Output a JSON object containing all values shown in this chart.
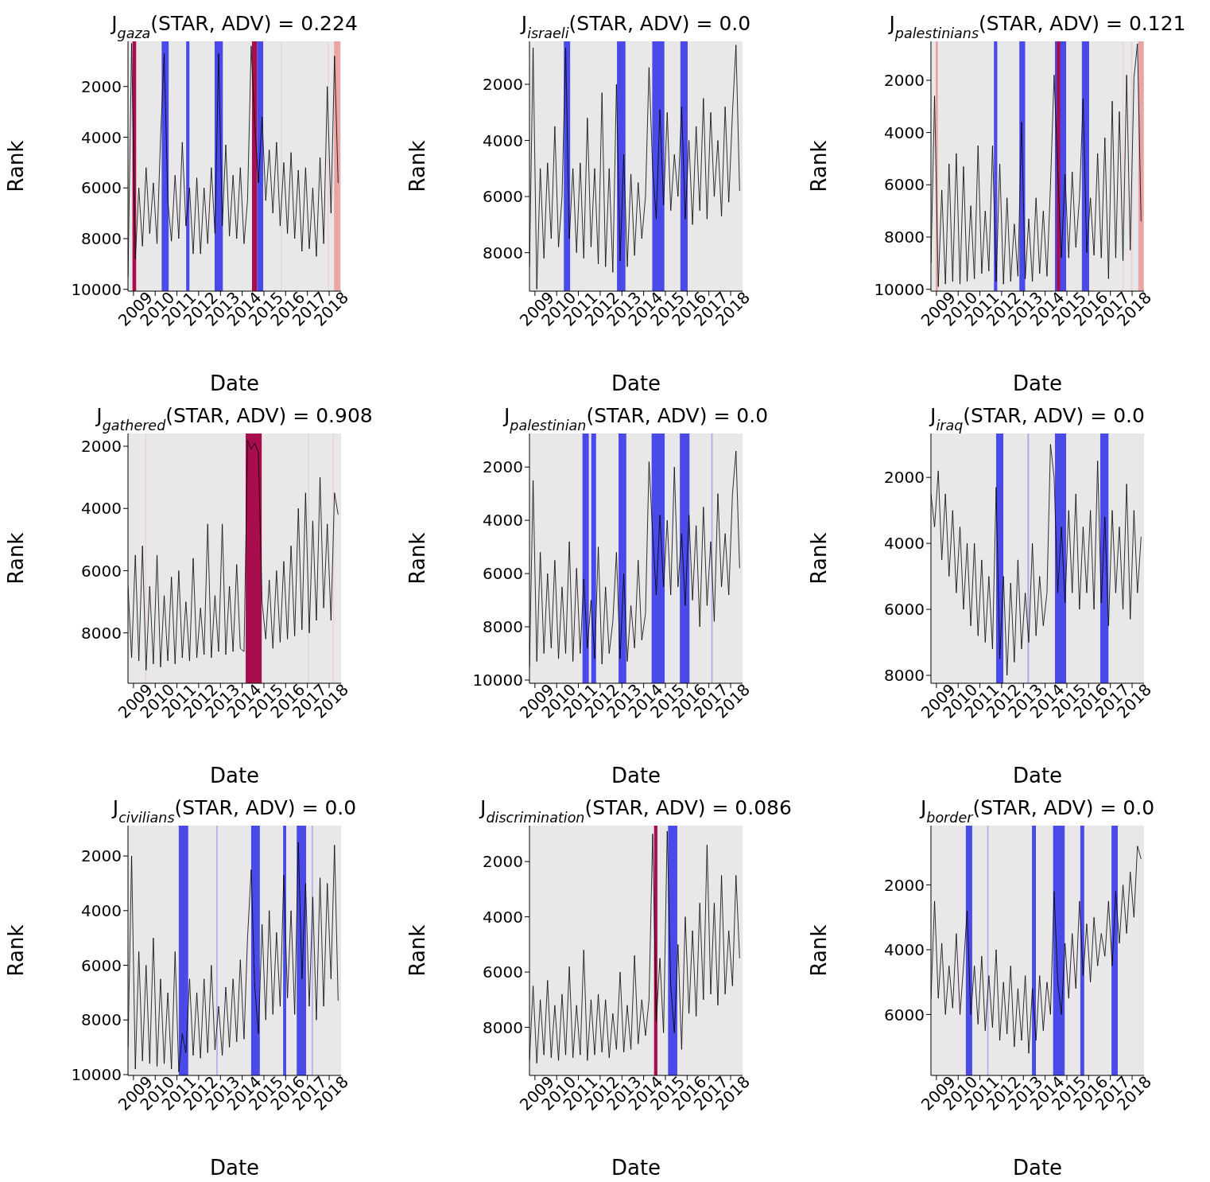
{
  "chart_data": [
    {
      "type": "line",
      "title": "J$_{gaza}$(STAR, ADV) =  0.224",
      "xlabel": "Date",
      "ylabel": "Rank",
      "color": "#000000",
      "line_style": "solid",
      "x": [
        "2008-10",
        "2008-12",
        "2009-02",
        "2009-04",
        "2009-06",
        "2009-08",
        "2009-10",
        "2009-12",
        "2010-02",
        "2010-04",
        "2010-06",
        "2010-08",
        "2010-10",
        "2010-12",
        "2011-02",
        "2011-04",
        "2011-06",
        "2011-08",
        "2011-10",
        "2011-12",
        "2012-02",
        "2012-04",
        "2012-06",
        "2012-08",
        "2012-10",
        "2012-12",
        "2013-02",
        "2013-04",
        "2013-06",
        "2013-08",
        "2013-10",
        "2013-12",
        "2014-02",
        "2014-04",
        "2014-06",
        "2014-08",
        "2014-10",
        "2014-12",
        "2015-02",
        "2015-04",
        "2015-06",
        "2015-08",
        "2015-10",
        "2015-12",
        "2016-02",
        "2016-04",
        "2016-06",
        "2016-08",
        "2016-10",
        "2016-12",
        "2017-02",
        "2017-04",
        "2017-06",
        "2017-08",
        "2017-10",
        "2017-12",
        "2018-02",
        "2018-04",
        "2018-06"
      ],
      "values": [
        9500,
        300,
        8800,
        6000,
        8300,
        5200,
        7800,
        5800,
        8200,
        4000,
        700,
        6500,
        8100,
        5500,
        8000,
        4200,
        7500,
        6000,
        8600,
        5600,
        8600,
        6000,
        8200,
        5200,
        7800,
        700,
        7500,
        4300,
        7900,
        5500,
        8000,
        5200,
        8200,
        6500,
        400,
        3500,
        5800,
        3200,
        6500,
        4500,
        7000,
        4200,
        7500,
        5000,
        7800,
        4600,
        8000,
        5300,
        8500,
        5200,
        8400,
        6000,
        8700,
        4800,
        8200,
        2000,
        7000,
        800,
        5800
      ],
      "xlim": [
        "2008-10-01",
        "2018-07-20"
      ],
      "xticks": [
        "2009",
        "2010",
        "2011",
        "2012",
        "2013",
        "2014",
        "2015",
        "2016",
        "2017",
        "2018"
      ],
      "ylim": [
        10070,
        220
      ],
      "yticks": [
        2000,
        4000,
        6000,
        8000,
        10000
      ],
      "bands": [
        {
          "axis": "x",
          "from": "2008-12-15",
          "to": "2009-02-15",
          "color": "#a80e4e"
        },
        {
          "axis": "x",
          "from": "2010-04-20",
          "to": "2010-08-15",
          "color": "#4a4ae8"
        },
        {
          "axis": "x",
          "from": "2011-06-05",
          "to": "2011-07-30",
          "color": "#4a4ae8"
        },
        {
          "axis": "x",
          "from": "2012-09-25",
          "to": "2013-02-10",
          "color": "#4a4ae8"
        },
        {
          "axis": "x",
          "from": "2014-06-15",
          "to": "2014-09-10",
          "color": "#a80e4e"
        },
        {
          "axis": "x",
          "from": "2014-09-10",
          "to": "2014-12-20",
          "color": "#4a4ae8"
        },
        {
          "axis": "x",
          "from": "2015-10-10",
          "to": "2015-10-30",
          "color": "#ecd4d4"
        },
        {
          "axis": "x",
          "from": "2017-12-05",
          "to": "2017-12-25",
          "color": "#ecd4d4"
        },
        {
          "axis": "x",
          "from": "2018-03-25",
          "to": "2018-07-05",
          "color": "#eba3a3"
        }
      ]
    },
    {
      "type": "line",
      "title": "J$_{israeli}$(STAR, ADV) =  0.0",
      "xlabel": "Date",
      "ylabel": "Rank",
      "color": "#000000",
      "line_style": "solid",
      "x": [
        "2008-10",
        "2008-12",
        "2009-02",
        "2009-04",
        "2009-06",
        "2009-08",
        "2009-10",
        "2009-12",
        "2010-02",
        "2010-04",
        "2010-06",
        "2010-08",
        "2010-10",
        "2010-12",
        "2011-02",
        "2011-04",
        "2011-06",
        "2011-08",
        "2011-10",
        "2011-12",
        "2012-02",
        "2012-04",
        "2012-06",
        "2012-08",
        "2012-10",
        "2012-12",
        "2013-02",
        "2013-04",
        "2013-06",
        "2013-08",
        "2013-10",
        "2013-12",
        "2014-02",
        "2014-04",
        "2014-06",
        "2014-08",
        "2014-10",
        "2014-12",
        "2015-02",
        "2015-04",
        "2015-06",
        "2015-08",
        "2015-10",
        "2015-12",
        "2016-02",
        "2016-04",
        "2016-06",
        "2016-08",
        "2016-10",
        "2016-12",
        "2017-02",
        "2017-04",
        "2017-06",
        "2017-08",
        "2017-10",
        "2017-12",
        "2018-02",
        "2018-04",
        "2018-06"
      ],
      "values": [
        8500,
        700,
        9300,
        5000,
        8200,
        4800,
        7500,
        3500,
        7800,
        6000,
        700,
        7500,
        5000,
        8000,
        4800,
        8200,
        3200,
        7800,
        5000,
        8400,
        2300,
        8500,
        5000,
        8700,
        2000,
        8300,
        4500,
        8500,
        5200,
        8100,
        5500,
        7500,
        6000,
        1400,
        5000,
        6800,
        2900,
        6300,
        3000,
        6500,
        4500,
        6000,
        2800,
        6800,
        4000,
        7000,
        3500,
        6500,
        2500,
        6800,
        3000,
        6000,
        4000,
        6700,
        2800,
        6200,
        3000,
        600,
        5800
      ],
      "xlim": [
        "2008-10-01",
        "2018-07-20"
      ],
      "xticks": [
        "2009",
        "2010",
        "2011",
        "2012",
        "2013",
        "2014",
        "2015",
        "2016",
        "2017",
        "2018"
      ],
      "ylim": [
        9370,
        470
      ],
      "yticks": [
        2000,
        4000,
        6000,
        8000
      ],
      "bands": [
        {
          "axis": "x",
          "from": "2010-05-01",
          "to": "2010-08-15",
          "color": "#4a4ae8"
        },
        {
          "axis": "x",
          "from": "2012-10-10",
          "to": "2013-03-01",
          "color": "#4a4ae8"
        },
        {
          "axis": "x",
          "from": "2014-05-25",
          "to": "2014-12-15",
          "color": "#4a4ae8"
        },
        {
          "axis": "x",
          "from": "2015-09-10",
          "to": "2016-01-10",
          "color": "#4a4ae8"
        }
      ]
    },
    {
      "type": "line",
      "title": "J$_{palestinians}$(STAR, ADV) =  0.121",
      "xlabel": "Date",
      "ylabel": "Rank",
      "color": "#000000",
      "line_style": "solid",
      "x": [
        "2008-10",
        "2008-12",
        "2009-02",
        "2009-04",
        "2009-06",
        "2009-08",
        "2009-10",
        "2009-12",
        "2010-02",
        "2010-04",
        "2010-06",
        "2010-08",
        "2010-10",
        "2010-12",
        "2011-02",
        "2011-04",
        "2011-06",
        "2011-08",
        "2011-10",
        "2011-12",
        "2012-02",
        "2012-04",
        "2012-06",
        "2012-08",
        "2012-10",
        "2012-12",
        "2013-02",
        "2013-04",
        "2013-06",
        "2013-08",
        "2013-10",
        "2013-12",
        "2014-02",
        "2014-04",
        "2014-06",
        "2014-08",
        "2014-10",
        "2014-12",
        "2015-02",
        "2015-04",
        "2015-06",
        "2015-08",
        "2015-10",
        "2015-12",
        "2016-02",
        "2016-04",
        "2016-06",
        "2016-08",
        "2016-10",
        "2016-12",
        "2017-02",
        "2017-04",
        "2017-06",
        "2017-08",
        "2017-10",
        "2017-12",
        "2018-02",
        "2018-04",
        "2018-06"
      ],
      "values": [
        9000,
        2600,
        9900,
        6200,
        9800,
        5200,
        9700,
        4800,
        9800,
        5300,
        9700,
        6800,
        9600,
        4500,
        9400,
        7000,
        9300,
        4500,
        9700,
        5200,
        9800,
        6500,
        9700,
        7500,
        9500,
        3600,
        9600,
        7300,
        9700,
        6500,
        9400,
        7000,
        9500,
        6000,
        1800,
        5500,
        8800,
        5600,
        8800,
        5500,
        8400,
        6500,
        2700,
        8600,
        6500,
        8700,
        4800,
        8800,
        4200,
        9600,
        2800,
        8800,
        3200,
        8900,
        1800,
        8500,
        1900,
        600,
        7400
      ],
      "xlim": [
        "2008-10-01",
        "2018-07-20"
      ],
      "xticks": [
        "2009",
        "2010",
        "2011",
        "2012",
        "2013",
        "2014",
        "2015",
        "2016",
        "2017",
        "2018"
      ],
      "ylim": [
        10070,
        510
      ],
      "yticks": [
        2000,
        4000,
        6000,
        8000,
        10000
      ],
      "bands": [
        {
          "axis": "x",
          "from": "2008-12-20",
          "to": "2009-01-25",
          "color": "#eba3a3"
        },
        {
          "axis": "x",
          "from": "2011-08-25",
          "to": "2011-10-20",
          "color": "#4a4ae8"
        },
        {
          "axis": "x",
          "from": "2012-10-25",
          "to": "2013-01-30",
          "color": "#4a4ae8"
        },
        {
          "axis": "x",
          "from": "2014-06-15",
          "to": "2014-12-20",
          "color": "#4a4ae8"
        },
        {
          "axis": "x",
          "from": "2014-07-15",
          "to": "2014-09-10",
          "color": "#a80e4e"
        },
        {
          "axis": "x",
          "from": "2015-09-10",
          "to": "2016-01-10",
          "color": "#4a4ae8"
        },
        {
          "axis": "x",
          "from": "2017-07-20",
          "to": "2017-08-10",
          "color": "#ecd4d4"
        },
        {
          "axis": "x",
          "from": "2017-12-10",
          "to": "2018-01-05",
          "color": "#ecd4d4"
        },
        {
          "axis": "x",
          "from": "2018-04-15",
          "to": "2018-07-15",
          "color": "#eba3a3"
        }
      ]
    },
    {
      "type": "line",
      "title": "J$_{gathered}$(STAR, ADV) =  0.908",
      "xlabel": "Date",
      "ylabel": "Rank",
      "color": "#000000",
      "line_style": "solid",
      "x": [
        "2008-10",
        "2008-12",
        "2009-02",
        "2009-04",
        "2009-06",
        "2009-08",
        "2009-10",
        "2009-12",
        "2010-02",
        "2010-04",
        "2010-06",
        "2010-08",
        "2010-10",
        "2010-12",
        "2011-02",
        "2011-04",
        "2011-06",
        "2011-08",
        "2011-10",
        "2011-12",
        "2012-02",
        "2012-04",
        "2012-06",
        "2012-08",
        "2012-10",
        "2012-12",
        "2013-02",
        "2013-04",
        "2013-06",
        "2013-08",
        "2013-10",
        "2013-12",
        "2014-02",
        "2014-04",
        "2014-06",
        "2014-08",
        "2014-10",
        "2014-12",
        "2015-02",
        "2015-04",
        "2015-06",
        "2015-08",
        "2015-10",
        "2015-12",
        "2016-02",
        "2016-04",
        "2016-06",
        "2016-08",
        "2016-10",
        "2016-12",
        "2017-02",
        "2017-04",
        "2017-06",
        "2017-08",
        "2017-10",
        "2017-12",
        "2018-02",
        "2018-04",
        "2018-06"
      ],
      "values": [
        6500,
        8800,
        5500,
        8900,
        5200,
        9200,
        6500,
        9000,
        5500,
        9100,
        6800,
        8900,
        6200,
        9000,
        6000,
        8800,
        7000,
        8900,
        5600,
        8800,
        7200,
        8700,
        4500,
        8800,
        6800,
        8600,
        4500,
        8700,
        6500,
        8600,
        5800,
        8500,
        8600,
        1800,
        2100,
        1900,
        2200,
        7000,
        8200,
        6300,
        8500,
        6000,
        8300,
        5700,
        8200,
        5200,
        8100,
        4000,
        7900,
        3500,
        8000,
        4400,
        7600,
        3000,
        7200,
        4500,
        7600,
        3500,
        4200
      ],
      "xlim": [
        "2008-10-01",
        "2018-07-20"
      ],
      "xticks": [
        "2009",
        "2010",
        "2011",
        "2012",
        "2013",
        "2014",
        "2015",
        "2016",
        "2017",
        "2018"
      ],
      "ylim": [
        9620,
        1590
      ],
      "yticks": [
        2000,
        4000,
        6000,
        8000
      ],
      "bands": [
        {
          "axis": "x",
          "from": "2009-07-15",
          "to": "2009-08-05",
          "color": "#ecd4d4"
        },
        {
          "axis": "x",
          "from": "2014-03-01",
          "to": "2014-11-25",
          "color": "#a80e4e"
        },
        {
          "axis": "x",
          "from": "2017-01-10",
          "to": "2017-02-01",
          "color": "#ecd4d4"
        },
        {
          "axis": "x",
          "from": "2018-03-01",
          "to": "2018-03-25",
          "color": "#ecd4d4"
        }
      ]
    },
    {
      "type": "line",
      "title": "J$_{palestinian}$(STAR, ADV) =  0.0",
      "xlabel": "Date",
      "ylabel": "Rank",
      "color": "#000000",
      "line_style": "solid",
      "x": [
        "2008-10",
        "2008-12",
        "2009-02",
        "2009-04",
        "2009-06",
        "2009-08",
        "2009-10",
        "2009-12",
        "2010-02",
        "2010-04",
        "2010-06",
        "2010-08",
        "2010-10",
        "2010-12",
        "2011-02",
        "2011-04",
        "2011-06",
        "2011-08",
        "2011-10",
        "2011-12",
        "2012-02",
        "2012-04",
        "2012-06",
        "2012-08",
        "2012-10",
        "2012-12",
        "2013-02",
        "2013-04",
        "2013-06",
        "2013-08",
        "2013-10",
        "2013-12",
        "2014-02",
        "2014-04",
        "2014-06",
        "2014-08",
        "2014-10",
        "2014-12",
        "2015-02",
        "2015-04",
        "2015-06",
        "2015-08",
        "2015-10",
        "2015-12",
        "2016-02",
        "2016-04",
        "2016-06",
        "2016-08",
        "2016-10",
        "2016-12",
        "2017-02",
        "2017-04",
        "2017-06",
        "2017-08",
        "2017-10",
        "2017-12",
        "2018-02",
        "2018-04",
        "2018-06"
      ],
      "values": [
        9500,
        2500,
        9300,
        5200,
        9000,
        6000,
        8800,
        5500,
        9200,
        6500,
        9000,
        4800,
        9300,
        5800,
        9000,
        6200,
        8800,
        7000,
        9200,
        5000,
        9400,
        6500,
        9000,
        7800,
        5200,
        9200,
        6000,
        9300,
        7200,
        8800,
        5500,
        8500,
        7500,
        1800,
        4500,
        6800,
        3800,
        6500,
        4000,
        6800,
        2000,
        6500,
        4500,
        7200,
        3800,
        7000,
        4200,
        8000,
        3500,
        7200,
        4800,
        7800,
        3000,
        6500,
        4500,
        6800,
        3000,
        1400,
        5800
      ],
      "xlim": [
        "2008-10-01",
        "2018-07-20"
      ],
      "xticks": [
        "2009",
        "2010",
        "2011",
        "2012",
        "2013",
        "2014",
        "2015",
        "2016",
        "2017",
        "2018"
      ],
      "ylim": [
        10120,
        740
      ],
      "yticks": [
        2000,
        4000,
        6000,
        8000,
        10000
      ],
      "bands": [
        {
          "axis": "x",
          "from": "2011-03-10",
          "to": "2011-06-25",
          "color": "#4a4ae8"
        },
        {
          "axis": "x",
          "from": "2011-08-05",
          "to": "2011-10-25",
          "color": "#4a4ae8"
        },
        {
          "axis": "x",
          "from": "2012-11-05",
          "to": "2013-03-15",
          "color": "#4a4ae8"
        },
        {
          "axis": "x",
          "from": "2014-05-15",
          "to": "2014-12-20",
          "color": "#4a4ae8"
        },
        {
          "axis": "x",
          "from": "2015-09-01",
          "to": "2016-02-10",
          "color": "#4a4ae8"
        },
        {
          "axis": "x",
          "from": "2017-02-10",
          "to": "2017-03-05",
          "color": "#aaaaee"
        }
      ]
    },
    {
      "type": "line",
      "title": "J$_{iraq}$(STAR, ADV) =  0.0",
      "xlabel": "Date",
      "ylabel": "Rank",
      "color": "#000000",
      "line_style": "solid",
      "x": [
        "2008-10",
        "2008-12",
        "2009-02",
        "2009-04",
        "2009-06",
        "2009-08",
        "2009-10",
        "2009-12",
        "2010-02",
        "2010-04",
        "2010-06",
        "2010-08",
        "2010-10",
        "2010-12",
        "2011-02",
        "2011-04",
        "2011-06",
        "2011-08",
        "2011-10",
        "2011-12",
        "2012-02",
        "2012-04",
        "2012-06",
        "2012-08",
        "2012-10",
        "2012-12",
        "2013-02",
        "2013-04",
        "2013-06",
        "2013-08",
        "2013-10",
        "2013-12",
        "2014-02",
        "2014-04",
        "2014-06",
        "2014-08",
        "2014-10",
        "2014-12",
        "2015-02",
        "2015-04",
        "2015-06",
        "2015-08",
        "2015-10",
        "2015-12",
        "2016-02",
        "2016-04",
        "2016-06",
        "2016-08",
        "2016-10",
        "2016-12",
        "2017-02",
        "2017-04",
        "2017-06",
        "2017-08",
        "2017-10",
        "2017-12",
        "2018-02",
        "2018-04",
        "2018-06"
      ],
      "values": [
        2500,
        3500,
        1800,
        4500,
        2500,
        5000,
        3000,
        5500,
        3500,
        6000,
        4000,
        6500,
        4000,
        6800,
        4500,
        7000,
        5000,
        7200,
        2300,
        7500,
        5000,
        8000,
        5200,
        7600,
        4500,
        7200,
        5500,
        7000,
        4000,
        6800,
        5000,
        6500,
        5500,
        1000,
        2000,
        5500,
        3500,
        5800,
        3000,
        5500,
        2500,
        6000,
        3500,
        5500,
        3000,
        6000,
        1500,
        5800,
        3200,
        6500,
        3000,
        5500,
        3500,
        6000,
        2200,
        6300,
        3000,
        5500,
        3800
      ],
      "xlim": [
        "2008-10-01",
        "2018-07-20"
      ],
      "xticks": [
        "2009",
        "2010",
        "2011",
        "2012",
        "2013",
        "2014",
        "2015",
        "2016",
        "2017",
        "2018"
      ],
      "ylim": [
        8240,
        670
      ],
      "yticks": [
        2000,
        4000,
        6000,
        8000
      ],
      "bands": [
        {
          "axis": "x",
          "from": "2011-10-01",
          "to": "2012-01-30",
          "color": "#4a4ae8"
        },
        {
          "axis": "x",
          "from": "2013-03-10",
          "to": "2013-04-05",
          "color": "#aaaaee"
        },
        {
          "axis": "x",
          "from": "2014-06-15",
          "to": "2014-12-20",
          "color": "#4a4ae8"
        },
        {
          "axis": "x",
          "from": "2016-07-15",
          "to": "2016-11-30",
          "color": "#4a4ae8"
        }
      ]
    },
    {
      "type": "line",
      "title": "J$_{civilians}$(STAR, ADV) =  0.0",
      "xlabel": "Date",
      "ylabel": "Rank",
      "color": "#000000",
      "line_style": "solid",
      "x": [
        "2008-10",
        "2008-12",
        "2009-02",
        "2009-04",
        "2009-06",
        "2009-08",
        "2009-10",
        "2009-12",
        "2010-02",
        "2010-04",
        "2010-06",
        "2010-08",
        "2010-10",
        "2010-12",
        "2011-02",
        "2011-04",
        "2011-06",
        "2011-08",
        "2011-10",
        "2011-12",
        "2012-02",
        "2012-04",
        "2012-06",
        "2012-08",
        "2012-10",
        "2012-12",
        "2013-02",
        "2013-04",
        "2013-06",
        "2013-08",
        "2013-10",
        "2013-12",
        "2014-02",
        "2014-04",
        "2014-06",
        "2014-08",
        "2014-10",
        "2014-12",
        "2015-02",
        "2015-04",
        "2015-06",
        "2015-08",
        "2015-10",
        "2015-12",
        "2016-02",
        "2016-04",
        "2016-06",
        "2016-08",
        "2016-10",
        "2016-12",
        "2017-02",
        "2017-04",
        "2017-06",
        "2017-08",
        "2017-10",
        "2017-12",
        "2018-02",
        "2018-04",
        "2018-06"
      ],
      "values": [
        9000,
        2000,
        9800,
        5500,
        9500,
        6000,
        9600,
        5000,
        9700,
        6500,
        9600,
        7000,
        9800,
        5500,
        9900,
        8500,
        9200,
        6500,
        9300,
        7000,
        9400,
        6500,
        9200,
        6000,
        9100,
        7500,
        9300,
        6800,
        9000,
        6500,
        8800,
        5800,
        8700,
        5000,
        2500,
        6800,
        8500,
        4500,
        8000,
        4000,
        7800,
        4800,
        7500,
        2700,
        7200,
        4000,
        7800,
        1500,
        6500,
        3000,
        7500,
        3500,
        8000,
        2800,
        7500,
        3000,
        6500,
        1600,
        7300
      ],
      "xlim": [
        "2008-10-01",
        "2018-07-20"
      ],
      "xticks": [
        "2009",
        "2010",
        "2011",
        "2012",
        "2013",
        "2014",
        "2015",
        "2016",
        "2017",
        "2018"
      ],
      "ylim": [
        10030,
        890
      ],
      "yticks": [
        2000,
        4000,
        6000,
        8000,
        10000
      ],
      "bands": [
        {
          "axis": "x",
          "from": "2011-02-01",
          "to": "2011-07-10",
          "color": "#4a4ae8"
        },
        {
          "axis": "x",
          "from": "2012-10-25",
          "to": "2012-11-15",
          "color": "#aaaaee"
        },
        {
          "axis": "x",
          "from": "2014-06-01",
          "to": "2014-10-25",
          "color": "#4a4ae8"
        },
        {
          "axis": "x",
          "from": "2015-11-20",
          "to": "2016-01-10",
          "color": "#4a4ae8"
        },
        {
          "axis": "x",
          "from": "2016-07-05",
          "to": "2016-12-10",
          "color": "#4a4ae8"
        },
        {
          "axis": "x",
          "from": "2017-03-15",
          "to": "2017-04-05",
          "color": "#aaaaee"
        }
      ]
    },
    {
      "type": "line",
      "title": "J$_{discrimination}$(STAR, ADV) =  0.086",
      "xlabel": "Date",
      "ylabel": "Rank",
      "color": "#000000",
      "line_style": "solid",
      "x": [
        "2008-10",
        "2008-12",
        "2009-02",
        "2009-04",
        "2009-06",
        "2009-08",
        "2009-10",
        "2009-12",
        "2010-02",
        "2010-04",
        "2010-06",
        "2010-08",
        "2010-10",
        "2010-12",
        "2011-02",
        "2011-04",
        "2011-06",
        "2011-08",
        "2011-10",
        "2011-12",
        "2012-02",
        "2012-04",
        "2012-06",
        "2012-08",
        "2012-10",
        "2012-12",
        "2013-02",
        "2013-04",
        "2013-06",
        "2013-08",
        "2013-10",
        "2013-12",
        "2014-02",
        "2014-04",
        "2014-06",
        "2014-08",
        "2014-10",
        "2014-12",
        "2015-02",
        "2015-04",
        "2015-06",
        "2015-08",
        "2015-10",
        "2015-12",
        "2016-02",
        "2016-04",
        "2016-06",
        "2016-08",
        "2016-10",
        "2016-12",
        "2017-02",
        "2017-04",
        "2017-06",
        "2017-08",
        "2017-10",
        "2017-12",
        "2018-02",
        "2018-04",
        "2018-06"
      ],
      "values": [
        9200,
        6500,
        9300,
        7000,
        9000,
        6300,
        9100,
        7200,
        9200,
        6800,
        9000,
        5800,
        9100,
        7200,
        9000,
        5200,
        9200,
        7000,
        9000,
        6800,
        8900,
        7000,
        9100,
        7500,
        8800,
        6000,
        8900,
        7200,
        8800,
        5400,
        8600,
        7000,
        8300,
        7000,
        1000,
        7800,
        5500,
        8200,
        900,
        6500,
        8200,
        5000,
        8800,
        4000,
        7500,
        4500,
        7600,
        3500,
        7000,
        1400,
        6800,
        3500,
        7200,
        2500,
        6800,
        4500,
        6500,
        2500,
        5500
      ],
      "xlim": [
        "2008-10-01",
        "2018-07-20"
      ],
      "xticks": [
        "2009",
        "2010",
        "2011",
        "2012",
        "2013",
        "2014",
        "2015",
        "2016",
        "2017",
        "2018"
      ],
      "ylim": [
        9740,
        700
      ],
      "yticks": [
        2000,
        4000,
        6000,
        8000
      ],
      "bands": [
        {
          "axis": "x",
          "from": "2014-06-25",
          "to": "2014-08-20",
          "color": "#a80e4e"
        },
        {
          "axis": "x",
          "from": "2015-02-15",
          "to": "2015-07-20",
          "color": "#4a4ae8"
        }
      ]
    },
    {
      "type": "line",
      "title": "J$_{border}$(STAR, ADV) =  0.0",
      "xlabel": "Date",
      "ylabel": "Rank",
      "color": "#000000",
      "line_style": "solid",
      "x": [
        "2008-10",
        "2008-12",
        "2009-02",
        "2009-04",
        "2009-06",
        "2009-08",
        "2009-10",
        "2009-12",
        "2010-02",
        "2010-04",
        "2010-06",
        "2010-08",
        "2010-10",
        "2010-12",
        "2011-02",
        "2011-04",
        "2011-06",
        "2011-08",
        "2011-10",
        "2011-12",
        "2012-02",
        "2012-04",
        "2012-06",
        "2012-08",
        "2012-10",
        "2012-12",
        "2013-02",
        "2013-04",
        "2013-06",
        "2013-08",
        "2013-10",
        "2013-12",
        "2014-02",
        "2014-04",
        "2014-06",
        "2014-08",
        "2014-10",
        "2014-12",
        "2015-02",
        "2015-04",
        "2015-06",
        "2015-08",
        "2015-10",
        "2015-12",
        "2016-02",
        "2016-04",
        "2016-06",
        "2016-08",
        "2016-10",
        "2016-12",
        "2017-02",
        "2017-04",
        "2017-06",
        "2017-08",
        "2017-10",
        "2017-12",
        "2018-02",
        "2018-04",
        "2018-06"
      ],
      "values": [
        5500,
        2500,
        5500,
        3800,
        6000,
        4500,
        5800,
        3500,
        6000,
        4500,
        2800,
        6000,
        4500,
        6300,
        4200,
        6500,
        4800,
        6400,
        4000,
        6800,
        5000,
        6600,
        4500,
        7000,
        5200,
        6800,
        4800,
        7200,
        5200,
        6800,
        4800,
        6500,
        5000,
        6000,
        2200,
        5000,
        6000,
        3800,
        5500,
        3500,
        5200,
        2500,
        4800,
        3200,
        5000,
        3000,
        4500,
        3500,
        4200,
        2500,
        4500,
        2200,
        3800,
        2000,
        3500,
        1600,
        3000,
        800,
        1200
      ],
      "xlim": [
        "2008-10-01",
        "2018-07-20"
      ],
      "xticks": [
        "2009",
        "2010",
        "2011",
        "2012",
        "2013",
        "2014",
        "2015",
        "2016",
        "2017",
        "2018"
      ],
      "ylim": [
        7880,
        170
      ],
      "yticks": [
        2000,
        4000,
        6000
      ],
      "bands": [
        {
          "axis": "x",
          "from": "2010-05-10",
          "to": "2010-08-25",
          "color": "#4a4ae8"
        },
        {
          "axis": "x",
          "from": "2011-05-05",
          "to": "2011-05-25",
          "color": "#aaaaee"
        },
        {
          "axis": "x",
          "from": "2013-05-25",
          "to": "2013-07-30",
          "color": "#4a4ae8"
        },
        {
          "axis": "x",
          "from": "2014-05-15",
          "to": "2014-11-25",
          "color": "#4a4ae8"
        },
        {
          "axis": "x",
          "from": "2015-08-15",
          "to": "2015-10-20",
          "color": "#4a4ae8"
        },
        {
          "axis": "x",
          "from": "2017-01-20",
          "to": "2017-05-05",
          "color": "#4a4ae8"
        }
      ]
    }
  ]
}
